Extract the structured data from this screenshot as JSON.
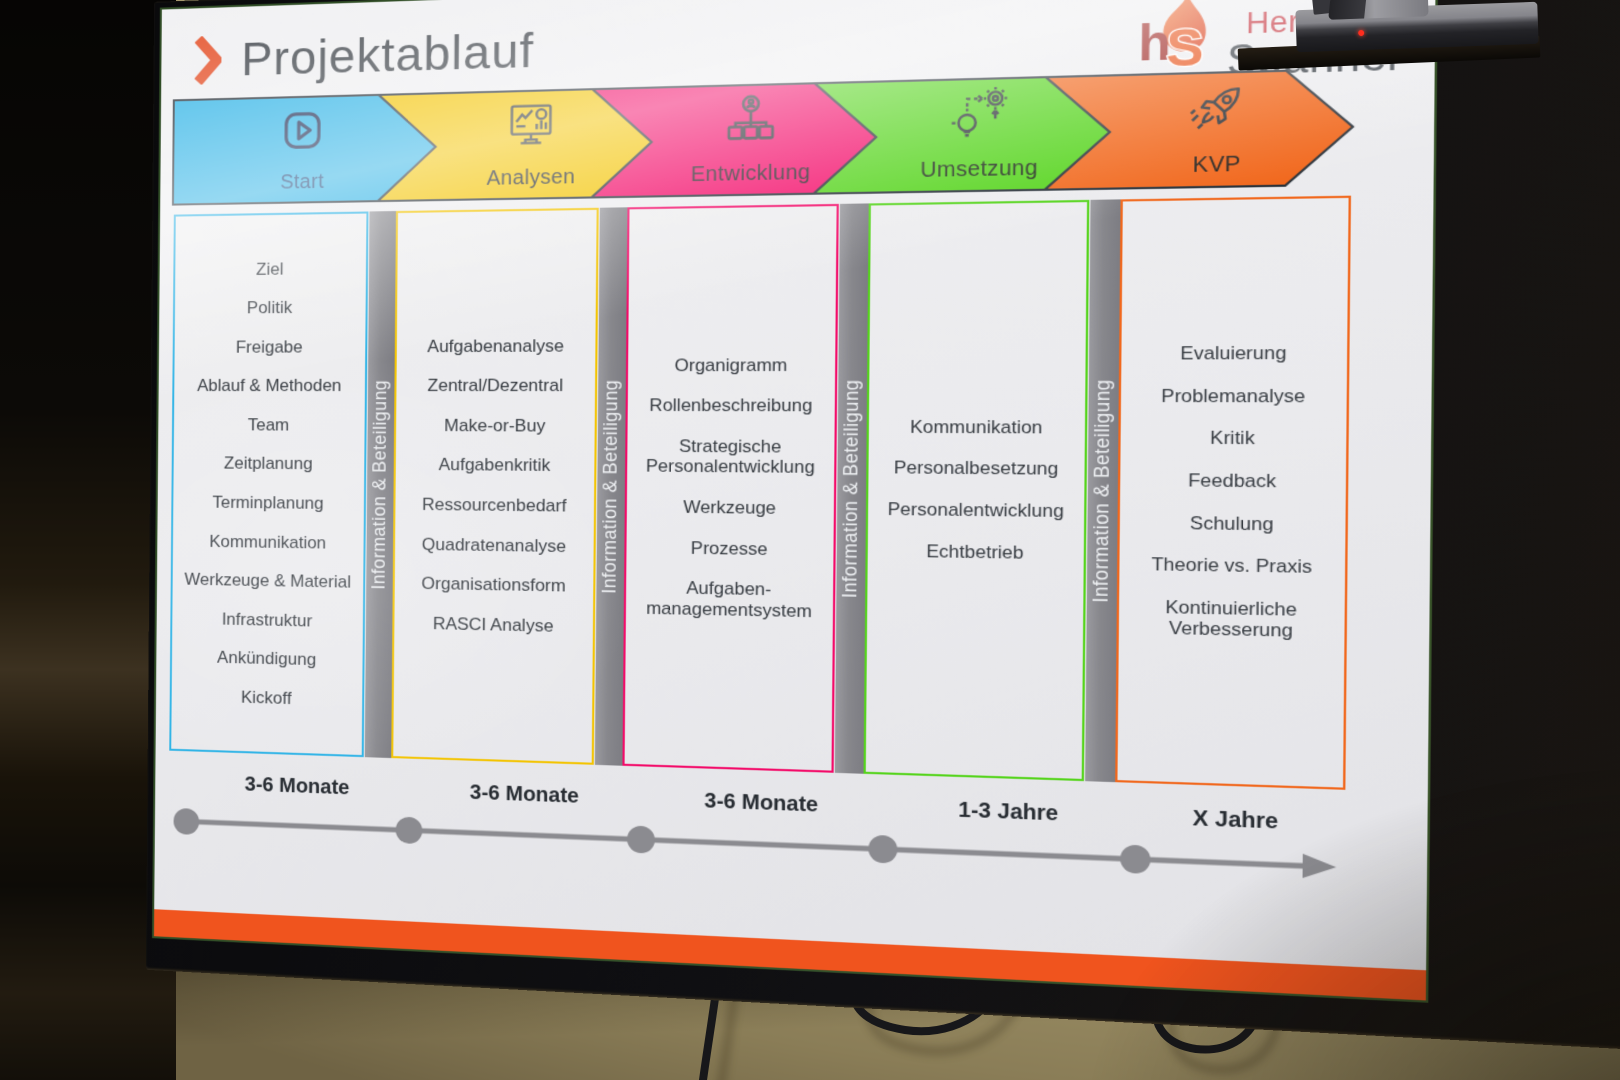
{
  "slide": {
    "title": "Projektablauf",
    "logo": {
      "mark": "hS",
      "line1": "Hermann",
      "line2": "Spanner"
    },
    "separator_label": "Information & Beteiligung",
    "accent_color": "#f0541e",
    "phases": [
      {
        "label": "Start",
        "color": "#2eb3e6",
        "label_color": "#123c72",
        "icon": "play-icon",
        "duration": "3-6 Monate",
        "items": [
          "Ziel",
          "Politik",
          "Freigabe",
          "Ablauf & Methoden",
          "Team",
          "Zeitplanung",
          "Terminplanung",
          "Kommunikation",
          "Werkzeuge & Material",
          "Infrastruktur",
          "Ankündigung",
          "Kickoff"
        ]
      },
      {
        "label": "Analysen",
        "color": "#f3c402",
        "label_color": "#23282e",
        "icon": "monitor-chart-icon",
        "duration": "3-6 Monate",
        "items": [
          "Aufgabenanalyse",
          "Zentral/Dezentral",
          "Make-or-Buy",
          "Aufgabenkritik",
          "Ressourcenbedarf",
          "Quadratenanalyse",
          "Organisationsform",
          "RASCI Analyse"
        ]
      },
      {
        "label": "Entwicklung",
        "color": "#f30b69",
        "label_color": "#2b2228",
        "icon": "org-chart-icon",
        "duration": "3-6 Monate",
        "items": [
          "Organigramm",
          "Rollenbeschreibung",
          "Strategische Personalentwicklung",
          "Werkzeuge",
          "Prozesse",
          "Aufgaben-managementsystem"
        ]
      },
      {
        "label": "Umsetzung",
        "color": "#55d41c",
        "label_color": "#1e2a1a",
        "icon": "idea-gear-icon",
        "duration": "1-3 Jahre",
        "items": [
          "Kommunikation",
          "Personalbesetzung",
          "Personalentwicklung",
          "Echtbetrieb"
        ]
      },
      {
        "label": "KVP",
        "color": "#f1681d",
        "label_color": "#27221d",
        "icon": "rocket-icon",
        "duration": "X Jahre",
        "items": [
          "Evaluierung",
          "Problemanalyse",
          "Kritik",
          "Feedback",
          "Schulung",
          "Theorie vs. Praxis",
          "Kontinuierliche Verbesserung"
        ]
      }
    ],
    "ui_colors": {
      "timeline_gray": "#8b8b90",
      "separator_bar_gray": "#8e8e93",
      "arrow_outline": "#283038",
      "title_chevron": "#e44f27"
    }
  }
}
